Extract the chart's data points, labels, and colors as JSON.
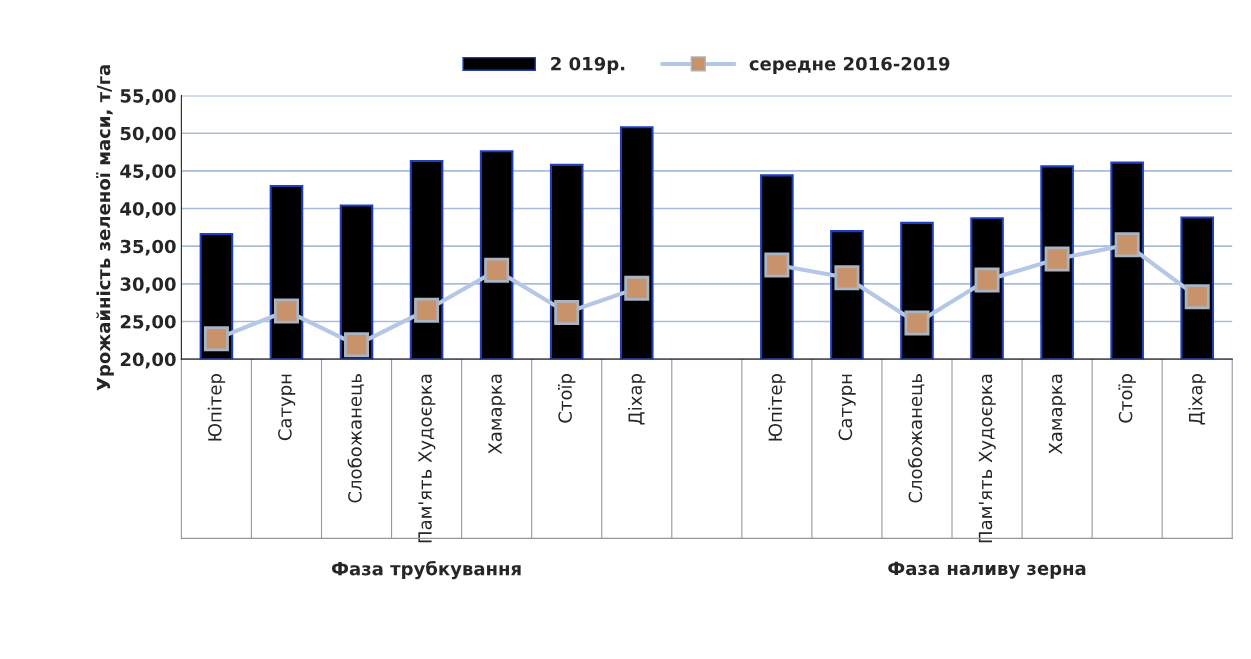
{
  "chart_data": {
    "type": "bar",
    "ylabel": "Урожайність зеленої маси, т/га",
    "categories": [
      "Юпітер",
      "Сатурн",
      "Слобожанець",
      "Пам'ять Худоєрка",
      "Хамарка",
      "Стоїр",
      "Діхар",
      null,
      "Юпітер",
      "Сатурн",
      "Слобожанець",
      "Пам'ять Худоєрка",
      "Хамарка",
      "Стоїр",
      "Діхар"
    ],
    "series": [
      {
        "name": "2 019р.",
        "color": "#000000",
        "values": [
          36.6,
          43.0,
          40.4,
          46.3,
          47.6,
          45.8,
          50.8,
          null,
          44.4,
          37.0,
          38.1,
          38.7,
          45.6,
          46.1,
          38.8
        ]
      },
      {
        "name": "середне 2016-2019",
        "type": "line",
        "color": "#b4c7e7",
        "marker": "square",
        "values": [
          22.7,
          26.4,
          21.9,
          26.5,
          31.8,
          26.2,
          29.4,
          null,
          32.5,
          30.8,
          24.8,
          30.5,
          33.3,
          35.2,
          28.3
        ]
      }
    ],
    "ylim": [
      20,
      55
    ],
    "yticks": [
      {
        "value": 20,
        "label": "20,00"
      },
      {
        "value": 25,
        "label": "25,00"
      },
      {
        "value": 30,
        "label": "30,00"
      },
      {
        "value": 35,
        "label": "35,00"
      },
      {
        "value": 40,
        "label": "40,00"
      },
      {
        "value": 45,
        "label": "45,00"
      },
      {
        "value": 50,
        "label": "50,00"
      },
      {
        "value": 55,
        "label": "55,00"
      }
    ],
    "grid": "y",
    "legend": "top",
    "annotations": [
      "Фаза трубкування",
      "Фаза наливу зерна"
    ]
  }
}
